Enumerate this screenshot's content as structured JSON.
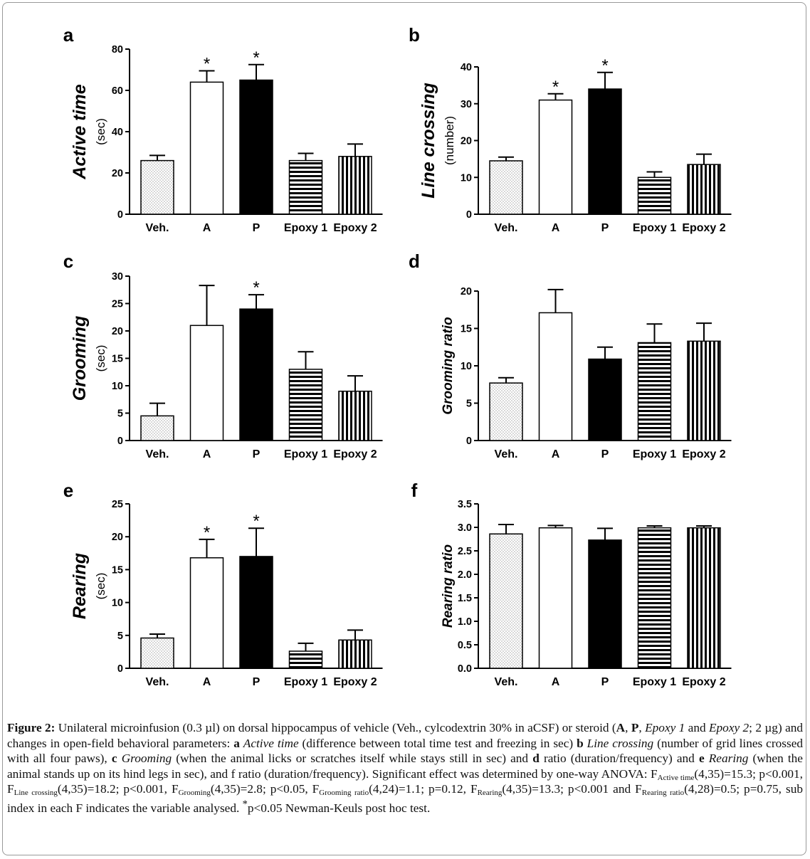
{
  "chart_data": [
    {
      "type": "bar",
      "panel": "a",
      "ylabel_main": "Active time",
      "ylabel_unit": "(sec)",
      "ylim": [
        0,
        80
      ],
      "yticks": [
        0,
        20,
        40,
        60,
        80
      ],
      "ytick_labels": [
        "0",
        "20",
        "40",
        "60",
        "80"
      ],
      "categories": [
        "Veh.",
        "A",
        "P",
        "Epoxy 1",
        "Epoxy 2"
      ],
      "values": [
        26,
        64,
        65,
        26,
        28
      ],
      "errors": [
        2.5,
        5.5,
        7.5,
        3.5,
        6
      ],
      "significant": [
        false,
        true,
        true,
        false,
        false
      ]
    },
    {
      "type": "bar",
      "panel": "b",
      "ylabel_main": "Line crossing",
      "ylabel_unit": "(number)",
      "ylim": [
        0,
        40
      ],
      "yticks": [
        0,
        10,
        20,
        30,
        40
      ],
      "ytick_labels": [
        "0",
        "10",
        "20",
        "30",
        "40"
      ],
      "categories": [
        "Veh.",
        "A",
        "P",
        "Epoxy 1",
        "Epoxy 2"
      ],
      "values": [
        14.5,
        31,
        34,
        10,
        13.5
      ],
      "errors": [
        1,
        1.7,
        4.5,
        1.5,
        2.8
      ],
      "significant": [
        false,
        true,
        true,
        false,
        false
      ]
    },
    {
      "type": "bar",
      "panel": "c",
      "ylabel_main": "Grooming",
      "ylabel_unit": "(sec)",
      "ylim": [
        0,
        30
      ],
      "yticks": [
        0,
        5,
        10,
        15,
        20,
        25,
        30
      ],
      "ytick_labels": [
        "0",
        "5",
        "10",
        "15",
        "20",
        "25",
        "30"
      ],
      "categories": [
        "Veh.",
        "A",
        "P",
        "Epoxy 1",
        "Epoxy 2"
      ],
      "values": [
        4.5,
        21,
        24,
        13,
        9
      ],
      "errors": [
        2.3,
        7.3,
        2.6,
        3.2,
        2.8
      ],
      "significant": [
        false,
        false,
        true,
        false,
        false
      ]
    },
    {
      "type": "bar",
      "panel": "d",
      "ylabel_main": "Grooming ratio",
      "ylabel_unit": "",
      "ylim": [
        0,
        20
      ],
      "yticks": [
        0,
        5,
        10,
        15,
        20
      ],
      "ytick_labels": [
        "0",
        "5",
        "10",
        "15",
        "20"
      ],
      "categories": [
        "Veh.",
        "A",
        "P",
        "Epoxy 1",
        "Epoxy 2"
      ],
      "values": [
        7.7,
        17.1,
        10.9,
        13.1,
        13.3
      ],
      "errors": [
        0.7,
        3.1,
        1.6,
        2.5,
        2.4
      ],
      "significant": [
        false,
        false,
        false,
        false,
        false
      ]
    },
    {
      "type": "bar",
      "panel": "e",
      "ylabel_main": "Rearing",
      "ylabel_unit": "(sec)",
      "ylim": [
        0,
        25
      ],
      "yticks": [
        0,
        5,
        10,
        15,
        20,
        25
      ],
      "ytick_labels": [
        "0",
        "5",
        "10",
        "15",
        "20",
        "25"
      ],
      "categories": [
        "Veh.",
        "A",
        "P",
        "Epoxy 1",
        "Epoxy 2"
      ],
      "values": [
        4.6,
        16.8,
        17,
        2.6,
        4.3
      ],
      "errors": [
        0.6,
        2.8,
        4.3,
        1.2,
        1.5
      ],
      "significant": [
        false,
        true,
        true,
        false,
        false
      ]
    },
    {
      "type": "bar",
      "panel": "f",
      "ylabel_main": "Rearing ratio",
      "ylabel_unit": "",
      "ylim": [
        0,
        3.5
      ],
      "yticks": [
        0,
        0.5,
        1,
        1.5,
        2,
        2.5,
        3,
        3.5
      ],
      "ytick_labels": [
        "0.0",
        "0.5",
        "1.0",
        "1.5",
        "2.0",
        "2.5",
        "3.0",
        "3.5"
      ],
      "categories": [
        "Veh.",
        "A",
        "P",
        "Epoxy 1",
        "Epoxy 2"
      ],
      "values": [
        2.86,
        2.99,
        2.73,
        2.99,
        2.99
      ],
      "errors": [
        0.2,
        0.05,
        0.25,
        0.04,
        0.04
      ],
      "significant": [
        false,
        false,
        false,
        false,
        false
      ]
    }
  ],
  "significance_marker": "*",
  "bar_patterns": [
    "dots",
    "white",
    "black",
    "horizontal-stripes",
    "vertical-stripes"
  ],
  "caption": {
    "label": "Figure 2:",
    "t1": " Unilateral microinfusion (0.3 µl) on dorsal hippocampus of vehicle (Veh., cylcodextrin 30% in aCSF) or steroid (",
    "b_A": "A",
    "t2": ", ",
    "b_P": "P",
    "t3": ", ",
    "i_epoxy1": "Epoxy 1",
    "t4": " and ",
    "i_epoxy2": "Epoxy 2",
    "t5": "; 2 µg) and changes in open-field behavioral parameters: ",
    "b_a": "a",
    "t6": " ",
    "i_active": "Active time",
    "t7": " (difference between total time test and freezing in sec) ",
    "b_b": "b",
    "t8": " ",
    "i_line": "Line crossing",
    "t9": " (number of grid lines crossed with all four paws), ",
    "b_c": "c",
    "t10": " ",
    "i_grooming": "Grooming",
    "t11": " (when the animal licks or scratches itself while stays still in sec) and ",
    "b_d": "d",
    "t12": " ratio (duration/frequency) and ",
    "b_e": "e",
    "t13": " ",
    "i_rearing": "Rearing",
    "t14": " (when the animal stands up on its hind legs in sec), and f ratio (duration/frequency). Significant effect was determined by one-way ANOVA: F",
    "sub1": "Active time",
    "t15": "(4,35)=15.3; p<0.001, F",
    "sub2": "Line crossing",
    "t16": "(4,35)=18.2; p<0.001, F",
    "sub3": "Grooming",
    "t17": "(4,35)=2.8; p<0.05, F",
    "sub4": "Grooming ratio",
    "t18": "(4,24)=1.1; p=0.12, F",
    "sub5": "Rearing",
    "t19": "(4,35)=13.3; p<0.001 and F",
    "sub6": "Rearing ratio",
    "t20": "(4,28)=0.5; p=0.75, sub index in each F indicates the variable analysed. ",
    "sup1": "*",
    "t21": "p<0.05 Newman-Keuls post hoc test."
  }
}
